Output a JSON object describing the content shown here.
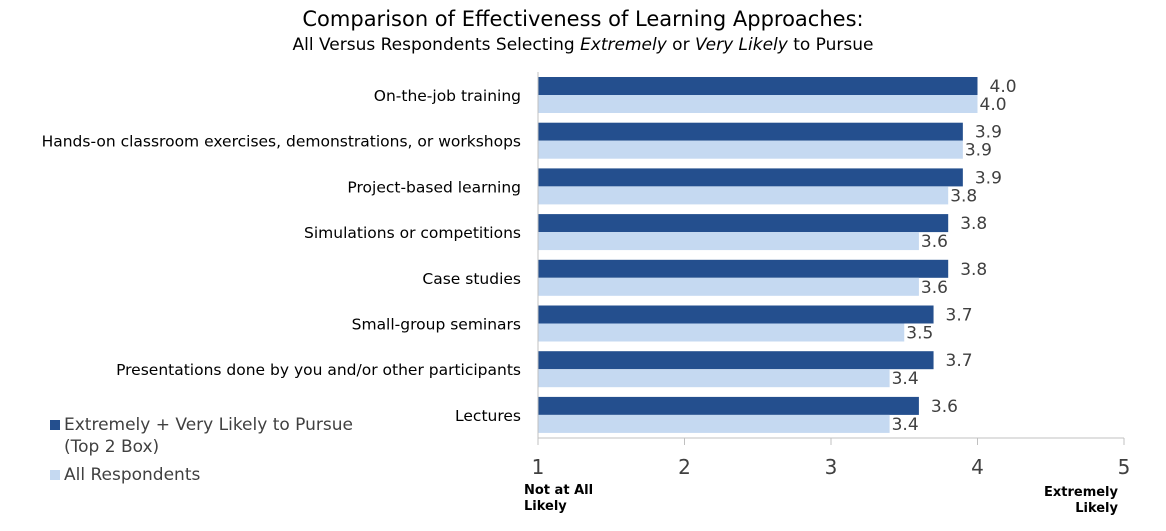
{
  "chart_data": {
    "type": "bar",
    "orientation": "horizontal",
    "title": "Comparison of Effectiveness of Learning Approaches:",
    "subtitle": {
      "parts": [
        {
          "text": "All Versus Respondents Selecting ",
          "italic": false
        },
        {
          "text": "Extremely",
          "italic": true
        },
        {
          "text": " or ",
          "italic": false
        },
        {
          "text": "Very Likely",
          "italic": true
        },
        {
          "text": " to Pursue",
          "italic": false
        }
      ]
    },
    "categories": [
      "On-the-job training",
      "Hands-on classroom exercises, demonstrations, or workshops",
      "Project-based learning",
      "Simulations or competitions",
      "Case studies",
      "Small-group seminars",
      "Presentations done by you and/or other participants",
      "Lectures"
    ],
    "series": [
      {
        "name": "Extremely + Very Likely to Pursue (Top 2 Box)",
        "color": "#244f8e",
        "values": [
          4.0,
          3.9,
          3.9,
          3.8,
          3.8,
          3.7,
          3.7,
          3.6
        ]
      },
      {
        "name": "All Respondents",
        "color": "#c5d9f1",
        "values": [
          4.0,
          3.9,
          3.8,
          3.6,
          3.6,
          3.5,
          3.4,
          3.4
        ]
      }
    ],
    "xlim": [
      1,
      5
    ],
    "x_ticks": [
      "1",
      "2",
      "3",
      "4",
      "5"
    ],
    "axis_end_labels": {
      "left": "Not at All Likely",
      "right": "Extremely Likely"
    },
    "grid": false,
    "legend_position": "bottom-left"
  },
  "legend": {
    "series1_line1": "Extremely + Very Likely to Pursue",
    "series1_line2": "(Top 2 Box)",
    "series2": "All Respondents"
  },
  "axis_labels": {
    "left_line1": "Not at All",
    "left_line2": "Likely",
    "right_line1": "Extremely",
    "right_line2": "Likely"
  },
  "colors": {
    "label_text": "#404040",
    "axis": "#c0c0c0"
  }
}
